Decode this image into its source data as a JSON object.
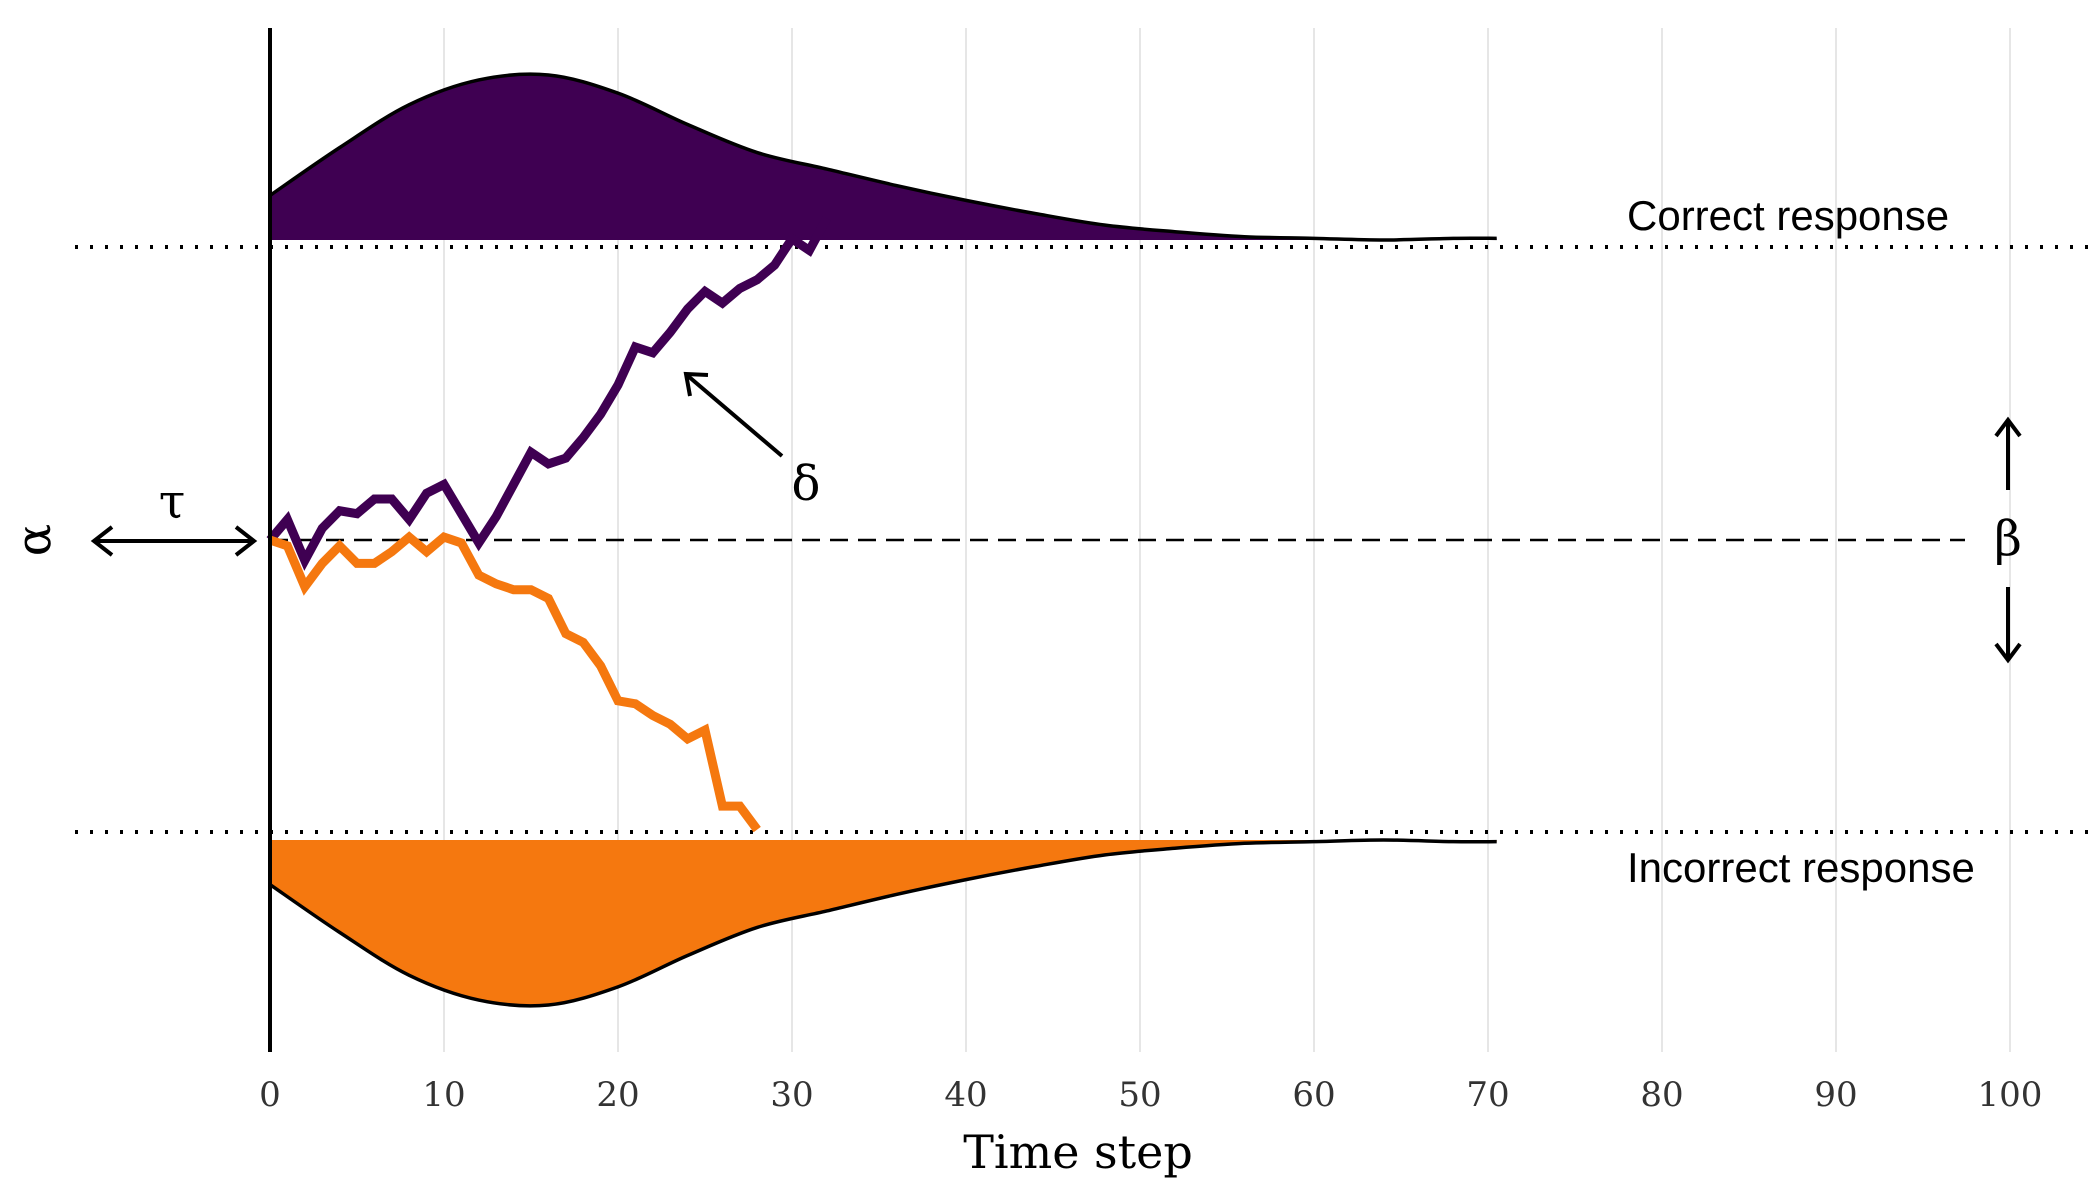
{
  "chart_data": {
    "type": "line",
    "xlabel": "Time step",
    "xlim": [
      0,
      105
    ],
    "x_ticks": [
      0,
      10,
      20,
      30,
      40,
      50,
      60,
      70,
      80,
      90,
      100
    ],
    "grid": "vertical",
    "boundary_labels": {
      "upper": "Correct response",
      "lower": "Incorrect response"
    },
    "parameter_labels": {
      "alpha": "α",
      "tau": "τ",
      "delta": "δ",
      "beta": "β"
    },
    "series": [
      {
        "color": "#3f0052",
        "x": [
          0,
          1,
          2,
          3,
          4,
          5,
          6,
          7,
          8,
          9,
          10,
          11,
          12,
          13,
          14,
          15,
          16,
          17,
          18,
          19,
          20,
          21,
          22,
          23,
          24,
          25,
          26,
          27,
          28,
          29,
          30,
          31,
          32
        ],
        "y": [
          0,
          0.07,
          -0.07,
          0.04,
          0.1,
          0.09,
          0.14,
          0.14,
          0.07,
          0.16,
          0.19,
          0.09,
          -0.01,
          0.08,
          0.19,
          0.3,
          0.26,
          0.28,
          0.35,
          0.43,
          0.53,
          0.66,
          0.64,
          0.71,
          0.79,
          0.85,
          0.81,
          0.86,
          0.89,
          0.94,
          1.03,
          0.99,
          1.1
        ]
      },
      {
        "color": "#f5780f",
        "x": [
          0,
          1,
          2,
          3,
          4,
          5,
          6,
          7,
          8,
          9,
          10,
          11,
          12,
          13,
          14,
          15,
          16,
          17,
          18,
          19,
          20,
          21,
          22,
          23,
          24,
          25,
          26,
          27,
          28
        ],
        "y": [
          0,
          -0.02,
          -0.16,
          -0.08,
          -0.02,
          -0.08,
          -0.08,
          -0.04,
          0.01,
          -0.04,
          0.01,
          -0.01,
          -0.12,
          -0.15,
          -0.17,
          -0.17,
          -0.2,
          -0.32,
          -0.35,
          -0.43,
          -0.55,
          -0.56,
          -0.6,
          -0.63,
          -0.68,
          -0.65,
          -0.91,
          -0.91,
          -0.99
        ]
      }
    ],
    "densities": [
      {
        "boundary": "upper",
        "color": "#3f0052",
        "x": [
          0,
          4,
          8,
          12,
          16,
          20,
          24,
          28,
          32,
          36,
          40,
          44,
          48,
          52,
          56,
          60,
          64,
          68,
          70.5
        ],
        "y": [
          0.27,
          0.56,
          0.82,
          0.97,
          1.0,
          0.89,
          0.7,
          0.53,
          0.43,
          0.33,
          0.24,
          0.16,
          0.09,
          0.05,
          0.02,
          0.01,
          0.0,
          0.01,
          0.01
        ]
      },
      {
        "boundary": "lower",
        "color": "#f5780f",
        "x": [
          0,
          4,
          8,
          12,
          16,
          20,
          24,
          28,
          32,
          36,
          40,
          44,
          48,
          52,
          56,
          60,
          64,
          68,
          70.5
        ],
        "y": [
          0.27,
          0.56,
          0.82,
          0.97,
          1.0,
          0.89,
          0.7,
          0.53,
          0.43,
          0.33,
          0.24,
          0.16,
          0.09,
          0.05,
          0.02,
          0.01,
          0.0,
          0.01,
          0.01
        ]
      }
    ]
  }
}
